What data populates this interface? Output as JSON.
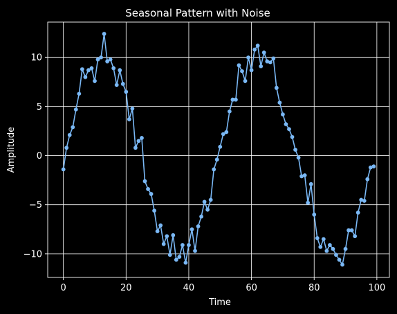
{
  "chart_data": {
    "type": "line",
    "title": "Seasonal Pattern with Noise",
    "xlabel": "Time",
    "ylabel": "Amplitude",
    "xlim": [
      -5,
      104
    ],
    "ylim": [
      -12.4,
      13.6
    ],
    "xticks": [
      0,
      20,
      40,
      60,
      80,
      100
    ],
    "yticks": [
      -10,
      -5,
      0,
      5,
      10
    ],
    "ytick_labels": [
      "−10",
      "−5",
      "0",
      "5",
      "10"
    ],
    "grid": true,
    "colors": {
      "background": "#000000",
      "line": "#7ab8f5",
      "grid": "#ffffff",
      "text": "#ffffff"
    },
    "series": [
      {
        "marker": "circle",
        "x": [
          0,
          1,
          2,
          3,
          4,
          5,
          6,
          7,
          8,
          9,
          10,
          11,
          12,
          13,
          14,
          15,
          16,
          17,
          18,
          19,
          20,
          21,
          22,
          23,
          24,
          25,
          26,
          27,
          28,
          29,
          30,
          31,
          32,
          33,
          34,
          35,
          36,
          37,
          38,
          39,
          40,
          41,
          42,
          43,
          44,
          45,
          46,
          47,
          48,
          49,
          50,
          51,
          52,
          53,
          54,
          55,
          56,
          57,
          58,
          59,
          60,
          61,
          62,
          63,
          64,
          65,
          66,
          67,
          68,
          69,
          70,
          71,
          72,
          73,
          74,
          75,
          76,
          77,
          78,
          79,
          80,
          81,
          82,
          83,
          84,
          85,
          86,
          87,
          88,
          89,
          90,
          91,
          92,
          93,
          94,
          95,
          96,
          97,
          98,
          99
        ],
        "y": [
          -1.4,
          0.8,
          2.1,
          2.9,
          4.7,
          6.3,
          8.8,
          8.0,
          8.7,
          8.9,
          7.6,
          9.8,
          10.0,
          12.4,
          9.6,
          9.8,
          8.9,
          7.2,
          8.7,
          7.3,
          6.5,
          3.7,
          4.8,
          0.8,
          1.5,
          1.8,
          -2.6,
          -3.4,
          -3.9,
          -5.6,
          -7.7,
          -7.1,
          -9.0,
          -8.2,
          -10.1,
          -8.1,
          -10.6,
          -10.3,
          -9.1,
          -10.9,
          -9.1,
          -7.5,
          -9.7,
          -7.2,
          -6.2,
          -4.7,
          -5.5,
          -4.5,
          -1.4,
          -0.4,
          0.9,
          2.2,
          2.4,
          4.5,
          5.7,
          5.7,
          9.2,
          8.6,
          7.6,
          10.0,
          8.7,
          10.8,
          11.2,
          9.1,
          10.5,
          9.6,
          9.5,
          9.9,
          6.9,
          5.4,
          4.2,
          3.2,
          2.7,
          1.9,
          0.6,
          -0.2,
          -2.1,
          -2.0,
          -4.8,
          -2.9,
          -6.0,
          -8.4,
          -9.3,
          -8.5,
          -9.7,
          -9.1,
          -9.5,
          -10.1,
          -10.6,
          -11.1,
          -9.5,
          -7.6,
          -7.6,
          -8.2,
          -5.8,
          -4.5,
          -4.6,
          -2.4,
          -1.2,
          -1.1
        ]
      }
    ]
  }
}
